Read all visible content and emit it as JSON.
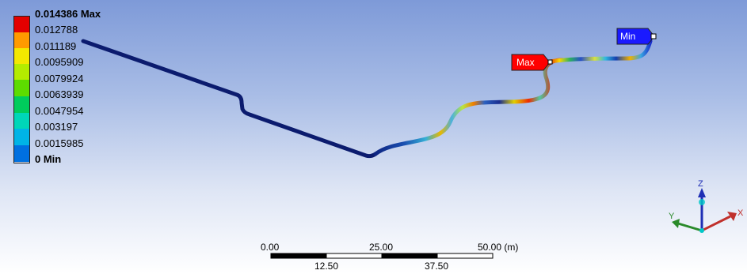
{
  "legend": {
    "labels": [
      "0.014386 Max",
      "0.012788",
      "0.011189",
      "0.0095909",
      "0.0079924",
      "0.0063939",
      "0.0047954",
      "0.003197",
      "0.0015985",
      "0 Min"
    ],
    "colors": [
      "#e30000",
      "#ff9a00",
      "#f3e800",
      "#b4ec00",
      "#5ddc00",
      "#00cc5c",
      "#00d6b8",
      "#00b4e6",
      "#0070e0",
      "#0000c8"
    ]
  },
  "probes": {
    "max_label": "Max",
    "min_label": "Min",
    "max_color": "#ff0000",
    "min_color": "#1a1aff"
  },
  "scale": {
    "top_labels": [
      "0.00",
      "25.00",
      "50.00 (m)"
    ],
    "bottom_labels": [
      "12.50",
      "37.50"
    ]
  },
  "triad": {
    "x_label": "X",
    "y_label": "Y",
    "z_label": "Z",
    "x_color": "#c0302c",
    "y_color": "#2a8a2a",
    "z_color": "#1f2fb5"
  }
}
